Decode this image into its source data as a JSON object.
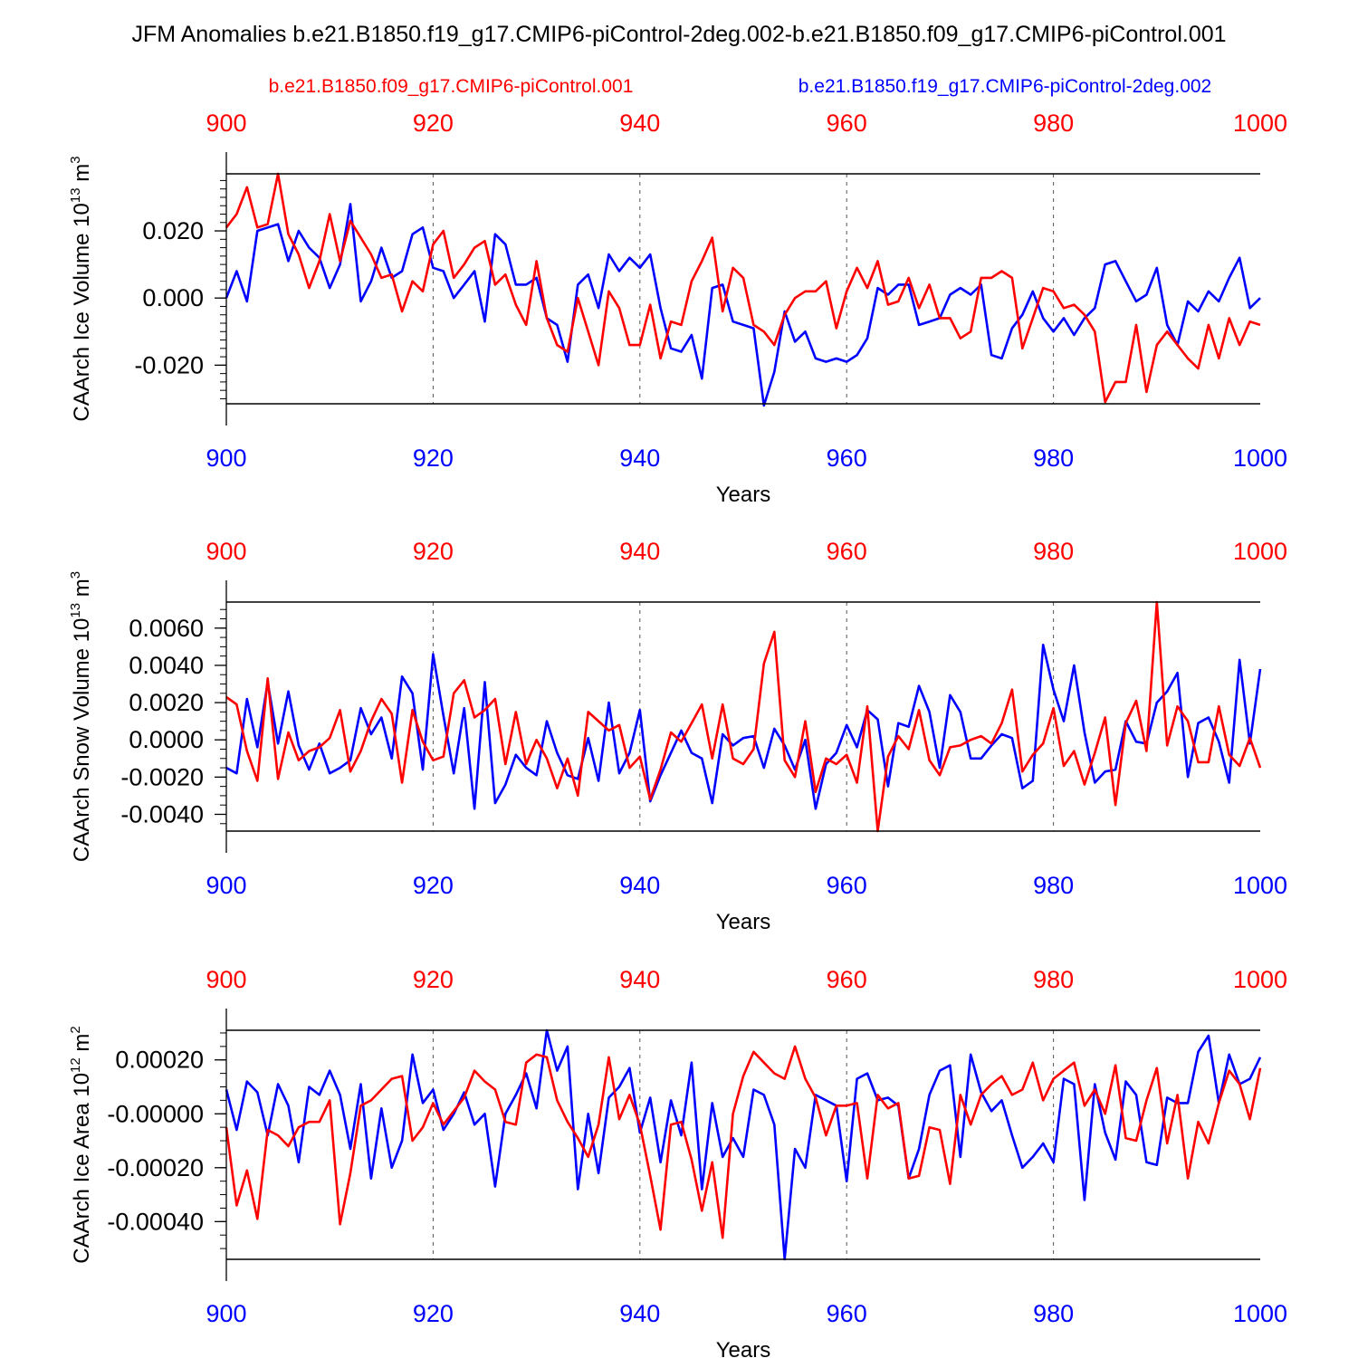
{
  "title": "JFM Anomalies b.e21.B1850.f19_g17.CMIP6-piControl-2deg.002-b.e21.B1850.f09_g17.CMIP6-piControl.001",
  "legend": {
    "red": "b.e21.B1850.f09_g17.CMIP6-piControl.001",
    "blue": "b.e21.B1850.f19_g17.CMIP6-piControl-2deg.002"
  },
  "colors": {
    "red": "#ff0000",
    "blue": "#0000ff",
    "axis": "#000000",
    "grid": "#555555"
  },
  "chart_data": [
    {
      "type": "line",
      "ylabel_main": "CAArch Ice Volume 10",
      "ylabel_exp1": "13",
      "ylabel_unit": " m",
      "ylabel_exp2": "3",
      "xlabel": "Years",
      "xlim": [
        900,
        1000
      ],
      "ylim": [
        -0.0315,
        0.037
      ],
      "yticks": [
        -0.02,
        0.0,
        0.02
      ],
      "ytick_labels": [
        "-0.020",
        "0.000",
        "0.020"
      ],
      "yminor": 0.0025,
      "xticks": [
        900,
        920,
        940,
        960,
        980,
        1000
      ],
      "xtick_labels_top": [
        "900",
        "920",
        "940",
        "960",
        "980",
        "1000"
      ],
      "xtick_labels_bottom": [
        "900",
        "920",
        "940",
        "960",
        "980",
        "1000"
      ],
      "series": [
        {
          "name": "b.e21.B1850.f09_g17.CMIP6-piControl.001",
          "color": "red",
          "values": [
            0.021,
            0.025,
            0.033,
            0.021,
            0.022,
            0.037,
            0.019,
            0.013,
            0.003,
            0.011,
            0.025,
            0.011,
            0.023,
            0.018,
            0.013,
            0.006,
            0.007,
            -0.004,
            0.005,
            0.002,
            0.016,
            0.02,
            0.006,
            0.01,
            0.015,
            0.017,
            0.004,
            0.007,
            -0.002,
            -0.008,
            0.011,
            -0.006,
            -0.014,
            -0.016,
            0.0,
            -0.01,
            -0.02,
            0.002,
            -0.003,
            -0.014,
            -0.014,
            -0.002,
            -0.018,
            -0.007,
            -0.008,
            0.005,
            0.011,
            0.018,
            -0.004,
            0.009,
            0.006,
            -0.008,
            -0.01,
            -0.014,
            -0.005,
            0.0,
            0.002,
            0.002,
            0.005,
            -0.009,
            0.002,
            0.009,
            0.003,
            0.011,
            -0.002,
            -0.001,
            0.006,
            -0.003,
            0.004,
            -0.006,
            -0.006,
            -0.012,
            -0.01,
            0.006,
            0.006,
            0.008,
            0.006,
            -0.015,
            -0.006,
            0.003,
            0.002,
            -0.003,
            -0.002,
            -0.005,
            -0.01,
            -0.031,
            -0.025,
            -0.025,
            -0.008,
            -0.028,
            -0.014,
            -0.01,
            -0.014,
            -0.018,
            -0.021,
            -0.008,
            -0.018,
            -0.006,
            -0.014,
            -0.007,
            -0.008
          ]
        },
        {
          "name": "b.e21.B1850.f19_g17.CMIP6-piControl-2deg.002",
          "color": "blue",
          "values": [
            0.0,
            0.008,
            -0.001,
            0.02,
            0.021,
            0.022,
            0.011,
            0.02,
            0.015,
            0.012,
            0.003,
            0.01,
            0.028,
            -0.001,
            0.005,
            0.015,
            0.006,
            0.008,
            0.019,
            0.021,
            0.009,
            0.008,
            0.0,
            0.004,
            0.008,
            -0.007,
            0.019,
            0.016,
            0.004,
            0.004,
            0.006,
            -0.006,
            -0.008,
            -0.019,
            0.004,
            0.007,
            -0.003,
            0.013,
            0.008,
            0.012,
            0.009,
            0.013,
            -0.003,
            -0.015,
            -0.016,
            -0.011,
            -0.024,
            0.003,
            0.004,
            -0.007,
            -0.008,
            -0.009,
            -0.032,
            -0.022,
            -0.004,
            -0.013,
            -0.01,
            -0.018,
            -0.019,
            -0.018,
            -0.019,
            -0.017,
            -0.012,
            0.003,
            0.001,
            0.004,
            0.004,
            -0.008,
            -0.007,
            -0.006,
            0.001,
            0.003,
            0.001,
            0.004,
            -0.017,
            -0.018,
            -0.009,
            -0.005,
            0.002,
            -0.006,
            -0.01,
            -0.006,
            -0.011,
            -0.006,
            -0.003,
            0.01,
            0.011,
            0.005,
            -0.001,
            0.001,
            0.009,
            -0.008,
            -0.014,
            -0.001,
            -0.004,
            0.002,
            -0.001,
            0.006,
            0.012,
            -0.003,
            0.0
          ]
        }
      ]
    },
    {
      "type": "line",
      "ylabel_main": "CAArch Snow Volume 10",
      "ylabel_exp1": "13",
      "ylabel_unit": " m",
      "ylabel_exp2": "3",
      "xlabel": "Years",
      "xlim": [
        900,
        1000
      ],
      "ylim": [
        -0.0049,
        0.0074
      ],
      "yticks": [
        -0.004,
        -0.002,
        0.0,
        0.002,
        0.004,
        0.006
      ],
      "ytick_labels": [
        "-0.0040",
        "-0.0020",
        "0.0000",
        "0.0020",
        "0.0040",
        "0.0060"
      ],
      "yminor": 0.0005,
      "xticks": [
        900,
        920,
        940,
        960,
        980,
        1000
      ],
      "xtick_labels_top": [
        "900",
        "920",
        "940",
        "960",
        "980",
        "1000"
      ],
      "xtick_labels_bottom": [
        "900",
        "920",
        "940",
        "960",
        "980",
        "1000"
      ],
      "series": [
        {
          "name": "b.e21.B1850.f09_g17.CMIP6-piControl.001",
          "color": "red",
          "values": [
            0.0023,
            0.0019,
            -0.0006,
            -0.0022,
            0.0033,
            -0.0021,
            0.0004,
            -0.0011,
            -0.0006,
            -0.0004,
            0.0001,
            0.0016,
            -0.0017,
            -0.0006,
            0.001,
            0.0022,
            0.0014,
            -0.0023,
            0.0016,
            -0.0001,
            -0.0011,
            -0.0009,
            0.0025,
            0.0032,
            0.0012,
            0.0016,
            0.0022,
            -0.0013,
            0.0015,
            -0.0013,
            0.0,
            -0.001,
            -0.0026,
            -0.001,
            -0.003,
            0.0015,
            0.001,
            0.0005,
            0.0008,
            -0.0015,
            -0.0009,
            -0.0032,
            -0.0016,
            0.0004,
            -0.0001,
            0.0009,
            0.0019,
            -0.001,
            0.0019,
            -0.001,
            -0.0013,
            -0.0005,
            0.0041,
            0.0058,
            -0.0011,
            -0.002,
            0.001,
            -0.0028,
            -0.001,
            -0.0013,
            -0.0008,
            -0.0023,
            0.0018,
            -0.0049,
            -0.0009,
            0.0002,
            -0.0005,
            0.0016,
            -0.0011,
            -0.0019,
            -0.0004,
            -0.0003,
            0.0,
            0.0002,
            -0.0002,
            0.0009,
            0.0027,
            -0.0017,
            -0.0008,
            -0.0002,
            0.0017,
            -0.0014,
            -0.0006,
            -0.0024,
            -0.0007,
            0.0012,
            -0.0035,
            0.0009,
            0.0021,
            -0.0006,
            0.0074,
            -0.0003,
            0.0018,
            0.001,
            -0.0012,
            -0.0012,
            0.0018,
            -0.0008,
            -0.0014,
            0.0001,
            -0.0015
          ]
        },
        {
          "name": "b.e21.B1850.f19_g17.CMIP6-piControl-2deg.002",
          "color": "blue",
          "values": [
            -0.0015,
            -0.0018,
            0.0022,
            -0.0004,
            0.0031,
            -0.0002,
            0.0026,
            -0.0003,
            -0.0016,
            -0.0002,
            -0.0018,
            -0.0015,
            -0.0011,
            0.0017,
            0.0003,
            0.0012,
            -0.001,
            0.0034,
            0.0025,
            -0.0016,
            0.0046,
            0.0013,
            -0.0018,
            0.0017,
            -0.0037,
            0.0031,
            -0.0034,
            -0.0024,
            -0.0008,
            -0.0015,
            -0.0019,
            0.001,
            -0.0007,
            -0.0019,
            -0.0021,
            0.0001,
            -0.0022,
            0.002,
            -0.0018,
            -0.0007,
            0.0016,
            -0.0033,
            -0.0019,
            -0.0007,
            0.0005,
            -0.0007,
            -0.001,
            -0.0034,
            0.0003,
            -0.0003,
            0.0001,
            0.0002,
            -0.0015,
            0.0006,
            -0.0003,
            -0.0016,
            0.0,
            -0.0037,
            -0.0013,
            -0.0007,
            0.0008,
            -0.0004,
            0.0016,
            0.0011,
            -0.0025,
            0.0009,
            0.0007,
            0.0029,
            0.0015,
            -0.0015,
            0.0024,
            0.0015,
            -0.001,
            -0.001,
            -0.0003,
            0.0003,
            0.0001,
            -0.0026,
            -0.0022,
            0.0051,
            0.0027,
            0.001,
            0.004,
            0.0004,
            -0.0023,
            -0.0017,
            -0.0016,
            0.001,
            -0.0001,
            -0.0002,
            0.002,
            0.0026,
            0.0036,
            -0.002,
            0.0009,
            0.0012,
            -0.0001,
            -0.0023,
            0.0043,
            -0.0002,
            0.0038
          ]
        }
      ]
    },
    {
      "type": "line",
      "ylabel_main": "CAArch Ice Area 10",
      "ylabel_exp1": "12",
      "ylabel_unit": " m",
      "ylabel_exp2": "2",
      "xlabel": "Years",
      "xlim": [
        900,
        1000
      ],
      "ylim": [
        -0.00054,
        0.00031
      ],
      "yticks": [
        -0.0004,
        -0.0002,
        0.0,
        0.0002
      ],
      "ytick_labels": [
        "-0.00040",
        "-0.00020",
        "-0.00000",
        "0.00020"
      ],
      "yminor": 5e-05,
      "xticks": [
        900,
        920,
        940,
        960,
        980,
        1000
      ],
      "xtick_labels_top": [
        "900",
        "920",
        "940",
        "960",
        "980",
        "1000"
      ],
      "xtick_labels_bottom": [
        "900",
        "920",
        "940",
        "960",
        "980",
        "1000"
      ],
      "series": [
        {
          "name": "b.e21.B1850.f09_g17.CMIP6-piControl.001",
          "color": "red",
          "values": [
            -5e-05,
            -0.00034,
            -0.00021,
            -0.00039,
            -6e-05,
            -8e-05,
            -0.00012,
            -5e-05,
            -3e-05,
            -3e-05,
            5e-05,
            -0.00041,
            -0.00022,
            3e-05,
            5e-05,
            9e-05,
            0.00013,
            0.00014,
            -0.0001,
            -5e-05,
            4e-05,
            -4e-05,
            1e-05,
            6e-05,
            0.00016,
            0.00012,
            9e-05,
            -3e-05,
            -4e-05,
            0.00019,
            0.00022,
            0.00021,
            5e-05,
            -3e-05,
            -9e-05,
            -0.00016,
            -4e-05,
            0.00021,
            -2e-05,
            7e-05,
            -4e-05,
            -0.00023,
            -0.00043,
            -4e-05,
            -3e-05,
            -0.00017,
            -0.00036,
            -0.00018,
            -0.00046,
            0.0,
            0.00014,
            0.00023,
            0.00019,
            0.00015,
            0.00013,
            0.00025,
            0.00013,
            6e-05,
            -8e-05,
            3e-05,
            3e-05,
            4e-05,
            -0.00024,
            7e-05,
            2e-05,
            4e-05,
            -0.00024,
            -0.00023,
            -5e-05,
            -6e-05,
            -0.00026,
            7e-05,
            -4e-05,
            7e-05,
            0.00011,
            0.00014,
            7e-05,
            9e-05,
            0.00019,
            5e-05,
            0.00013,
            0.00016,
            0.00019,
            3e-05,
            9e-05,
            0.0,
            0.00018,
            -9e-05,
            -0.0001,
            5e-05,
            0.00017,
            -0.00011,
            7e-05,
            -0.00024,
            -3e-05,
            -0.00011,
            4e-05,
            0.00016,
            0.00011,
            -2e-05,
            0.00017
          ]
        },
        {
          "name": "b.e21.B1850.f19_g17.CMIP6-piControl-2deg.002",
          "color": "blue",
          "values": [
            9e-05,
            -6e-05,
            0.00012,
            8e-05,
            -8e-05,
            0.00011,
            3e-05,
            -0.00018,
            0.0001,
            7e-05,
            0.00016,
            7e-05,
            -0.00013,
            0.00011,
            -0.00024,
            2e-05,
            -0.0002,
            -0.0001,
            0.00022,
            4e-05,
            9e-05,
            -6e-05,
            0.0,
            8e-05,
            -4e-05,
            0.0,
            -0.00027,
            0.0,
            7e-05,
            0.00015,
            2e-05,
            0.00031,
            0.00016,
            0.00025,
            -0.00028,
            0.0,
            -0.00022,
            6e-05,
            0.0001,
            0.00017,
            -7e-05,
            6e-05,
            -0.00018,
            5e-05,
            -8e-05,
            0.00019,
            -0.00028,
            4e-05,
            -0.00016,
            -9e-05,
            -0.00016,
            9e-05,
            7e-05,
            -4e-05,
            -0.00054,
            -0.00013,
            -0.0002,
            7e-05,
            5e-05,
            3e-05,
            -0.00025,
            0.00013,
            0.00015,
            5e-05,
            6e-05,
            3e-05,
            -0.00024,
            -0.00013,
            7e-05,
            0.00016,
            0.00018,
            -0.00016,
            0.00022,
            8e-05,
            1e-05,
            5e-05,
            -8e-05,
            -0.0002,
            -0.00016,
            -0.00011,
            -0.00018,
            0.00013,
            0.00011,
            -0.00032,
            0.00011,
            -7e-05,
            -0.00017,
            0.00012,
            7e-05,
            -0.00018,
            -0.00019,
            6e-05,
            4e-05,
            4e-05,
            0.00023,
            0.00029,
            4e-05,
            0.00022,
            0.00011,
            0.00013,
            0.00021
          ]
        }
      ]
    }
  ]
}
